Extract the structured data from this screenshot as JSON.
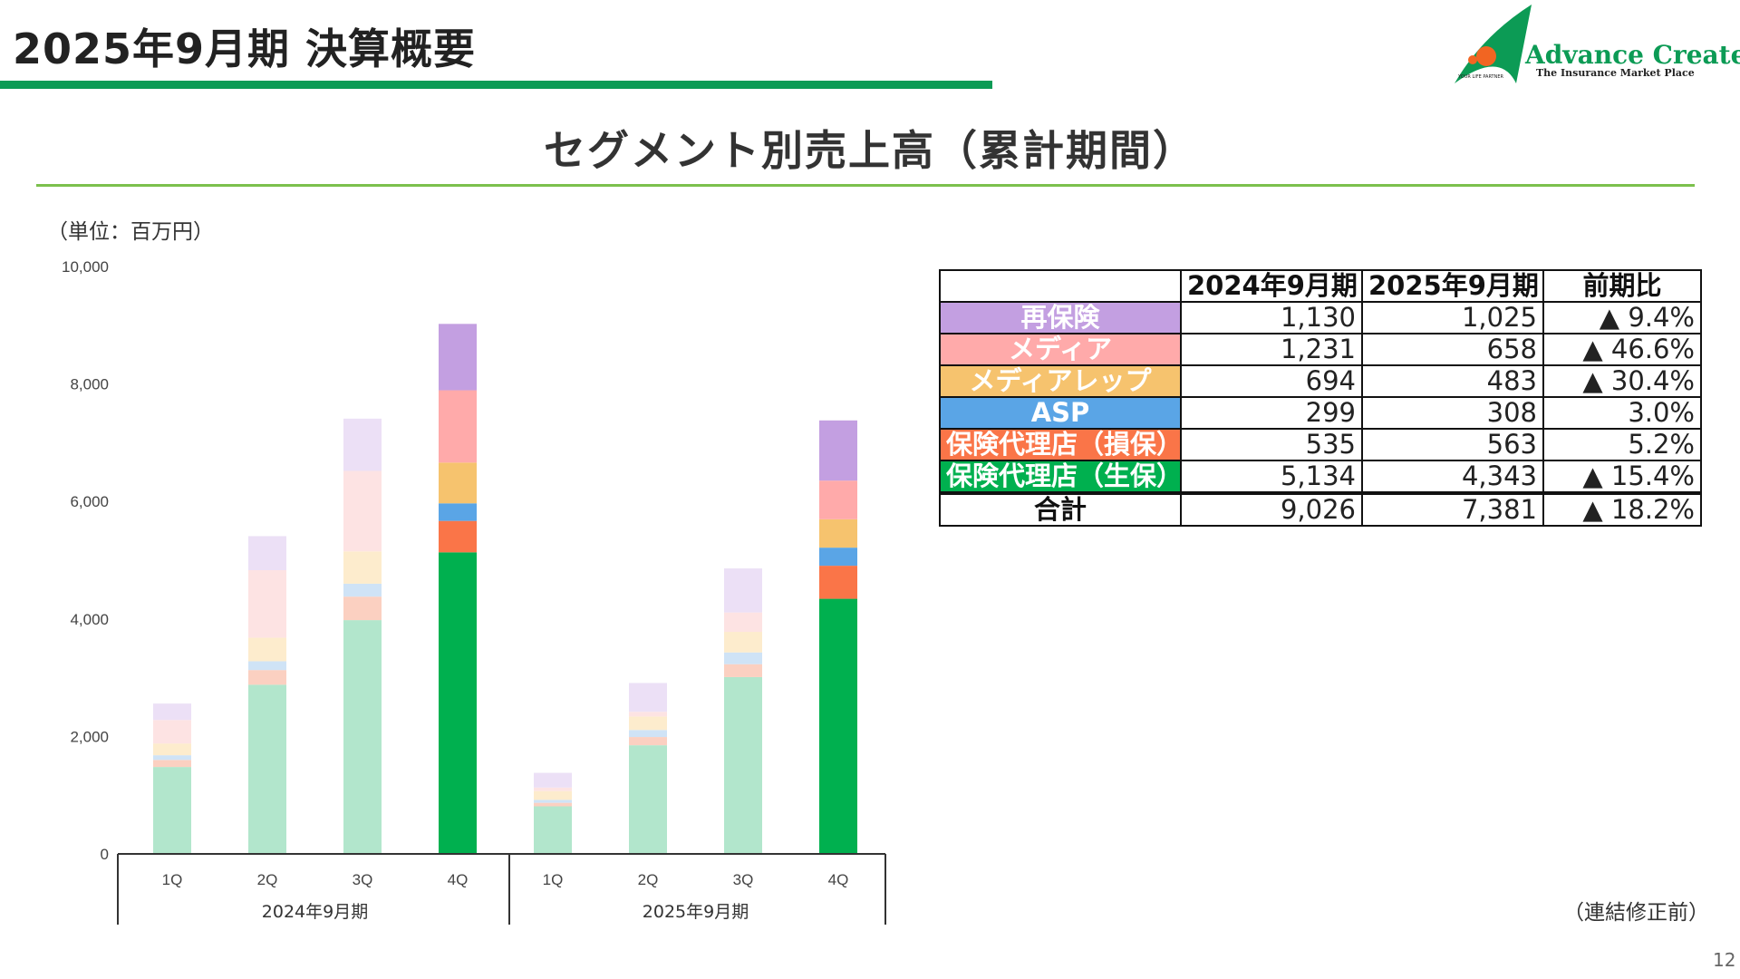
{
  "header": {
    "title": "2025年9月期 決算概要",
    "logo_text": "Advance Create",
    "logo_subtext": "The Insurance Market Place",
    "logo_small": "YOUR LIFE PARTNER"
  },
  "section_title": "セグメント別売上高（累計期間）",
  "unit_label": "（単位：百万円）",
  "note": "（連結修正前）",
  "page_number": "12",
  "colors": {
    "title_bar": "#0c9b55",
    "section_rule": "#7cc04d"
  },
  "table": {
    "headers": [
      "",
      "2024年9月期",
      "2025年9月期",
      "前期比"
    ],
    "rows": [
      {
        "segment": "再保険",
        "color": "#c39fe1",
        "fy2024": "1,130",
        "fy2025": "1,025",
        "change": "▲ 9.4%"
      },
      {
        "segment": "メディア",
        "color": "#ffaaaa",
        "fy2024": "1,231",
        "fy2025": "658",
        "change": "▲ 46.6%"
      },
      {
        "segment": "メディアレップ",
        "color": "#f6c36e",
        "fy2024": "694",
        "fy2025": "483",
        "change": "▲ 30.4%"
      },
      {
        "segment": "ASP",
        "color": "#5aa5e6",
        "fy2024": "299",
        "fy2025": "308",
        "change": "3.0%"
      },
      {
        "segment": "保険代理店（損保）",
        "color": "#fa7548",
        "fy2024": "535",
        "fy2025": "563",
        "change": "5.2%"
      },
      {
        "segment": "保険代理店（生保）",
        "color": "#00b04f",
        "fy2024": "5,134",
        "fy2025": "4,343",
        "change": "▲ 15.4%"
      }
    ],
    "total": {
      "segment": "合計",
      "fy2024": "9,026",
      "fy2025": "7,381",
      "change": "▲ 18.2%"
    }
  },
  "chart_data": {
    "type": "bar",
    "stacked": true,
    "y_ticks": [
      "0",
      "2,000",
      "4,000",
      "6,000",
      "8,000",
      "10,000"
    ],
    "ylim": [
      0,
      10000
    ],
    "grid": false,
    "categories": [
      "1Q",
      "2Q",
      "3Q",
      "4Q",
      "1Q",
      "2Q",
      "3Q",
      "4Q"
    ],
    "groups": [
      {
        "label": "2024年9月期",
        "start": 0,
        "end": 3
      },
      {
        "label": "2025年9月期",
        "start": 4,
        "end": 7
      }
    ],
    "highlight_categories": [
      3,
      7
    ],
    "series": [
      {
        "name": "保険代理店（生保）",
        "color": "#00b04f",
        "light_color": "#b2e6cc",
        "values": [
          1480,
          2880,
          3980,
          5134,
          810,
          1850,
          3010,
          4343
        ]
      },
      {
        "name": "保険代理店（損保）",
        "color": "#fa7548",
        "light_color": "#fbd0c1",
        "values": [
          120,
          250,
          400,
          535,
          60,
          140,
          220,
          563
        ]
      },
      {
        "name": "ASP",
        "color": "#5aa5e6",
        "light_color": "#cfe3f6",
        "values": [
          80,
          150,
          220,
          299,
          50,
          120,
          200,
          308
        ]
      },
      {
        "name": "メディアレップ",
        "color": "#f6c36e",
        "light_color": "#fdeccd",
        "values": [
          200,
          400,
          550,
          694,
          150,
          230,
          350,
          483
        ]
      },
      {
        "name": "メディア",
        "color": "#ffaaaa",
        "light_color": "#fde3e3",
        "values": [
          400,
          1150,
          1370,
          1231,
          60,
          80,
          330,
          658
        ]
      },
      {
        "name": "再保険",
        "color": "#c39fe1",
        "light_color": "#ece0f6",
        "values": [
          280,
          580,
          890,
          1130,
          250,
          490,
          750,
          1025
        ]
      }
    ]
  }
}
